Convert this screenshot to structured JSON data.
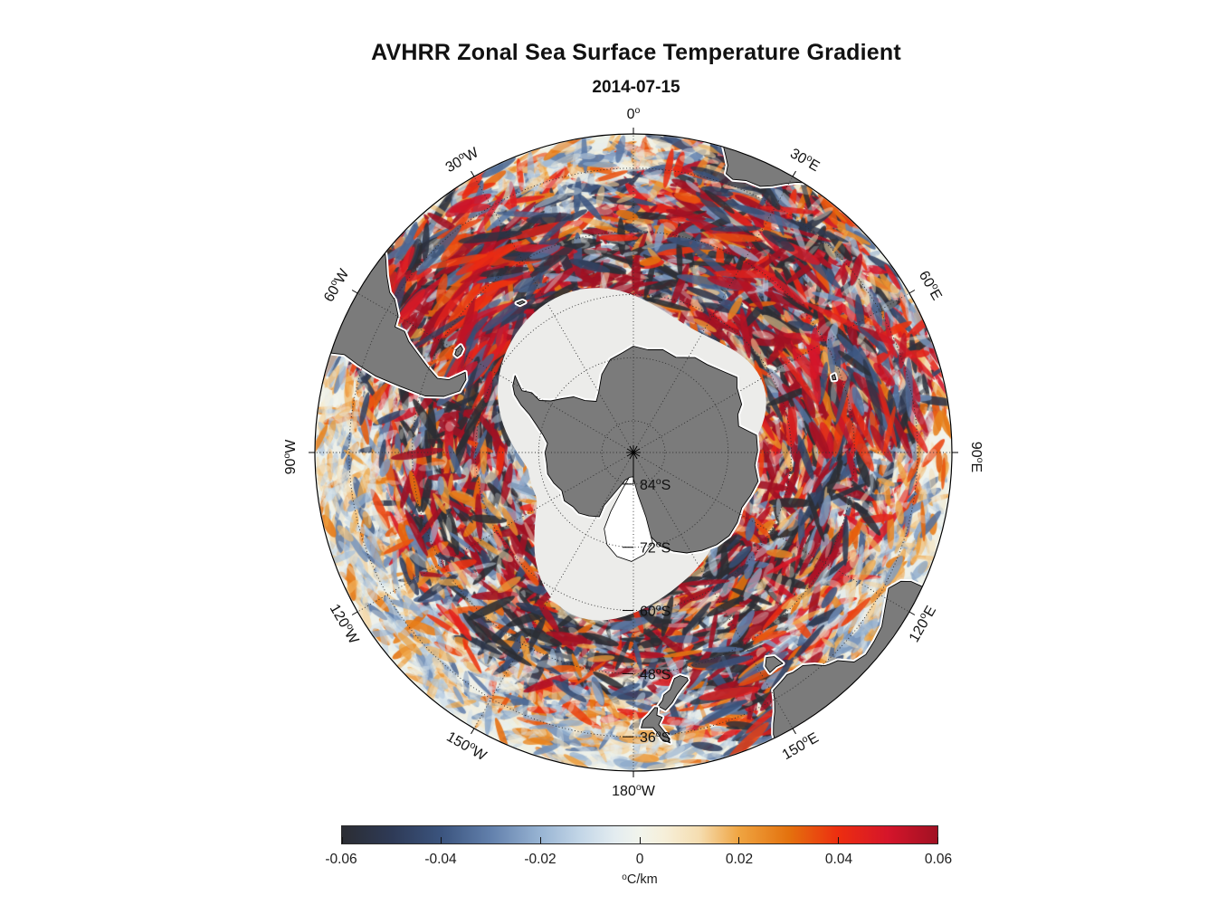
{
  "title": "AVHRR Zonal Sea Surface Temperature Gradient",
  "subtitle": "2014-07-15",
  "colors": {
    "background": "#ffffff",
    "land": "#7b7b7b",
    "land_outline": "#000000",
    "coast_halo": "#ffffff",
    "ice_nodata": "#ececea",
    "ocean_base": "#f2f4ed",
    "graticule": "#2f2f2f",
    "map_border": "#000000",
    "text": "#111111"
  },
  "chart_data": {
    "type": "heatmap",
    "projection": "south-polar, pole at center, outer edge near 30S",
    "title": "AVHRR Zonal Sea Surface Temperature Gradient",
    "subtitle": "2014-07-15",
    "edge_lat": -29.5,
    "grid_lats": [
      -84,
      -72,
      -60,
      -48,
      -36
    ],
    "grid_lon_step_deg": 30,
    "lon_labels": [
      {
        "deg": "0",
        "hem": "",
        "lon": 0,
        "rot": 0
      },
      {
        "deg": "30",
        "hem": "E",
        "lon": 30,
        "rot": 30
      },
      {
        "deg": "60",
        "hem": "E",
        "lon": 60,
        "rot": 60
      },
      {
        "deg": "90",
        "hem": "E",
        "lon": 90,
        "rot": 90
      },
      {
        "deg": "120",
        "hem": "E",
        "lon": 120,
        "rot": -60
      },
      {
        "deg": "150",
        "hem": "E",
        "lon": 150,
        "rot": -30
      },
      {
        "deg": "180",
        "hem": "W",
        "lon": 180,
        "rot": 0
      },
      {
        "deg": "150",
        "hem": "W",
        "lon": -150,
        "rot": 30
      },
      {
        "deg": "120",
        "hem": "W",
        "lon": -120,
        "rot": 60
      },
      {
        "deg": "90",
        "hem": "W",
        "lon": -90,
        "rot": -90
      },
      {
        "deg": "60",
        "hem": "W",
        "lon": -60,
        "rot": -60
      },
      {
        "deg": "30",
        "hem": "W",
        "lon": -30,
        "rot": -30
      }
    ],
    "lat_labels": [
      {
        "deg": "84",
        "hem": "S",
        "lat": -84
      },
      {
        "deg": "72",
        "hem": "S",
        "lat": -72
      },
      {
        "deg": "60",
        "hem": "S",
        "lat": -60
      },
      {
        "deg": "48",
        "hem": "S",
        "lat": -48
      },
      {
        "deg": "36",
        "hem": "S",
        "lat": -36
      }
    ],
    "colorbar": {
      "min": -0.06,
      "max": 0.06,
      "ticks": [
        -0.06,
        -0.04,
        -0.02,
        0,
        0.02,
        0.04,
        0.06
      ],
      "tick_labels": [
        "-0.06",
        "-0.04",
        "-0.02",
        "0",
        "0.02",
        "0.04",
        "0.06"
      ],
      "unit_sup": "o",
      "unit_rest": "C/km",
      "stops": [
        {
          "v": -0.06,
          "c": "#2b2d33"
        },
        {
          "v": -0.05,
          "c": "#2e3a56"
        },
        {
          "v": -0.04,
          "c": "#3b547e"
        },
        {
          "v": -0.03,
          "c": "#6280ac"
        },
        {
          "v": -0.02,
          "c": "#98b4d3"
        },
        {
          "v": -0.012,
          "c": "#c3d6e7"
        },
        {
          "v": -0.005,
          "c": "#e3ecf0"
        },
        {
          "v": 0.0,
          "c": "#f1f4ec"
        },
        {
          "v": 0.005,
          "c": "#f6efd9"
        },
        {
          "v": 0.012,
          "c": "#f5ddb0"
        },
        {
          "v": 0.02,
          "c": "#efa441"
        },
        {
          "v": 0.03,
          "c": "#e4720e"
        },
        {
          "v": 0.04,
          "c": "#ed2e10"
        },
        {
          "v": 0.05,
          "c": "#d5152a"
        },
        {
          "v": 0.06,
          "c": "#a11123"
        }
      ]
    },
    "landmasses": {
      "antarctica": [
        [
          -57,
          -63.2
        ],
        [
          -58.5,
          -64.2
        ],
        [
          -61,
          -65.8
        ],
        [
          -59.5,
          -67.6
        ],
        [
          -61,
          -69.6
        ],
        [
          -58,
          -71.5
        ],
        [
          -53,
          -73
        ],
        [
          -47,
          -74.5
        ],
        [
          -43,
          -76.5
        ],
        [
          -36,
          -78
        ],
        [
          -30,
          -76.8
        ],
        [
          -22,
          -74
        ],
        [
          -14,
          -71.8
        ],
        [
          -6,
          -70.9
        ],
        [
          0,
          -69.8
        ],
        [
          8,
          -70.3
        ],
        [
          16,
          -69.7
        ],
        [
          24,
          -70.2
        ],
        [
          33,
          -68.5
        ],
        [
          40,
          -68.2
        ],
        [
          48,
          -67
        ],
        [
          54,
          -65.7
        ],
        [
          58,
          -66.8
        ],
        [
          66,
          -67.5
        ],
        [
          70,
          -68.9
        ],
        [
          76,
          -69.4
        ],
        [
          82,
          -66.4
        ],
        [
          89,
          -66.4
        ],
        [
          96,
          -66.8
        ],
        [
          103,
          -65.7
        ],
        [
          110,
          -66.3
        ],
        [
          117,
          -66.9
        ],
        [
          124,
          -66.2
        ],
        [
          131,
          -65.9
        ],
        [
          138,
          -66.4
        ],
        [
          145,
          -67.3
        ],
        [
          152,
          -68.4
        ],
        [
          158,
          -69.8
        ],
        [
          164,
          -71.5
        ],
        [
          169,
          -74
        ],
        [
          174,
          -77.5
        ],
        [
          180,
          -83.5
        ],
        [
          186,
          -85.3
        ],
        [
          196,
          -84.6
        ],
        [
          204,
          -82
        ],
        [
          209,
          -78.5
        ],
        [
          208,
          -76.2
        ],
        [
          215,
          -75.3
        ],
        [
          222,
          -74.5
        ],
        [
          228,
          -74.6
        ],
        [
          235,
          -74
        ],
        [
          242,
          -74.6
        ],
        [
          249,
          -73.8
        ],
        [
          256,
          -73.2
        ],
        [
          263,
          -73.4
        ],
        [
          270,
          -73.2
        ],
        [
          276,
          -73.6
        ],
        [
          281,
          -72.5
        ],
        [
          286,
          -70.8
        ],
        [
          290,
          -69
        ],
        [
          293,
          -66.8
        ],
        [
          296,
          -64.9
        ],
        [
          299,
          -63.8
        ]
      ],
      "south_america": [
        [
          -71.8,
          -29.6
        ],
        [
          -71.3,
          -32
        ],
        [
          -72.3,
          -35
        ],
        [
          -73.5,
          -39
        ],
        [
          -74.2,
          -44
        ],
        [
          -74.8,
          -49
        ],
        [
          -73.5,
          -52.5
        ],
        [
          -70.5,
          -55
        ],
        [
          -66.5,
          -55.3
        ],
        [
          -64.5,
          -54.6
        ],
        [
          -68.5,
          -52.3
        ],
        [
          -69.3,
          -50.2
        ],
        [
          -67.4,
          -47.6
        ],
        [
          -65.3,
          -44.8
        ],
        [
          -63.7,
          -42.4
        ],
        [
          -62.1,
          -40.8
        ],
        [
          -62.2,
          -38.8
        ],
        [
          -59.8,
          -38.3
        ],
        [
          -57.4,
          -36.2
        ],
        [
          -56.7,
          -34.6
        ],
        [
          -54.3,
          -32.3
        ],
        [
          -52.2,
          -30.5
        ],
        [
          -51.3,
          -29.6
        ],
        [
          -55,
          -29.3
        ],
        [
          -60,
          -29.25
        ],
        [
          -65,
          -29.25
        ],
        [
          -70,
          -29.3
        ]
      ],
      "falkland_islands": [
        [
          -61.2,
          -51.3
        ],
        [
          -59.8,
          -51.1
        ],
        [
          -58.2,
          -51.4
        ],
        [
          -58.8,
          -52.1
        ],
        [
          -60.4,
          -52.2
        ],
        [
          -61.4,
          -51.9
        ]
      ],
      "south_georgia": [
        [
          -38,
          -54
        ],
        [
          -36.2,
          -54.3
        ],
        [
          -35.8,
          -54.8
        ],
        [
          -37.5,
          -54.6
        ]
      ],
      "southern_africa": [
        [
          16.4,
          -29.4
        ],
        [
          17.3,
          -31
        ],
        [
          18.2,
          -32.6
        ],
        [
          18.4,
          -34.2
        ],
        [
          20,
          -34.8
        ],
        [
          22.5,
          -34.1
        ],
        [
          25.5,
          -34
        ],
        [
          27.5,
          -32.9
        ],
        [
          29.5,
          -31.3
        ],
        [
          31.2,
          -30
        ],
        [
          32.3,
          -29.4
        ],
        [
          28,
          -29.2
        ],
        [
          24,
          -29.2
        ],
        [
          20,
          -29.2
        ]
      ],
      "australia": [
        [
          114.9,
          -29.4
        ],
        [
          114.9,
          -31.8
        ],
        [
          115.7,
          -33.6
        ],
        [
          118,
          -35.1
        ],
        [
          121.5,
          -33.9
        ],
        [
          125,
          -32.4
        ],
        [
          128,
          -31.9
        ],
        [
          131,
          -31.5
        ],
        [
          133.5,
          -32.2
        ],
        [
          135.5,
          -34.6
        ],
        [
          137.2,
          -35.2
        ],
        [
          138.1,
          -35.6
        ],
        [
          139.5,
          -37
        ],
        [
          141.5,
          -38.3
        ],
        [
          144,
          -38.4
        ],
        [
          145.3,
          -38.7
        ],
        [
          147.2,
          -38.2
        ],
        [
          149.5,
          -37.6
        ],
        [
          150.3,
          -35.9
        ],
        [
          151.4,
          -33.9
        ],
        [
          152.7,
          -32
        ],
        [
          153.6,
          -30.2
        ],
        [
          153.7,
          -29.4
        ],
        [
          148,
          -29.2
        ],
        [
          141,
          -29.2
        ],
        [
          134,
          -29.2
        ],
        [
          127,
          -29.2
        ],
        [
          120,
          -29.2
        ],
        [
          116,
          -29.2
        ]
      ],
      "tasmania": [
        [
          144.7,
          -40.9
        ],
        [
          146.3,
          -41.1
        ],
        [
          148.2,
          -40.8
        ],
        [
          148.3,
          -42.3
        ],
        [
          147,
          -43.6
        ],
        [
          145.4,
          -42.9
        ]
      ],
      "new_zealand_south": [
        [
          166.6,
          -46
        ],
        [
          168.2,
          -46.7
        ],
        [
          169.7,
          -46.4
        ],
        [
          171.2,
          -44.4
        ],
        [
          172.8,
          -43.6
        ],
        [
          173.3,
          -42.6
        ],
        [
          174.4,
          -41.6
        ],
        [
          172.9,
          -40.7
        ],
        [
          171.2,
          -41.9
        ],
        [
          169.8,
          -43.3
        ],
        [
          168,
          -44.6
        ],
        [
          166.5,
          -45.5
        ]
      ],
      "new_zealand_north": [
        [
          172.8,
          -34.4
        ],
        [
          174.4,
          -35.3
        ],
        [
          175.1,
          -36.6
        ],
        [
          175.9,
          -37.6
        ],
        [
          178.4,
          -37.7
        ],
        [
          177.9,
          -39.1
        ],
        [
          176.6,
          -40.1
        ],
        [
          175.2,
          -41.4
        ],
        [
          174.6,
          -41.3
        ],
        [
          174.9,
          -39.9
        ],
        [
          173.8,
          -39.4
        ],
        [
          174.7,
          -38.1
        ],
        [
          173.1,
          -35.8
        ]
      ],
      "kerguelen": [
        [
          68.8,
          -49
        ],
        [
          70.2,
          -49.1
        ],
        [
          70,
          -49.7
        ],
        [
          68.9,
          -49.6
        ]
      ]
    },
    "ross_ice_shelf": [
      [
        168,
        -72.5
      ],
      [
        174,
        -70.5
      ],
      [
        181,
        -69.3
      ],
      [
        189,
        -70
      ],
      [
        196,
        -71.8
      ],
      [
        201,
        -74.5
      ],
      [
        201,
        -78
      ],
      [
        197,
        -82.5
      ],
      [
        190,
        -85.2
      ],
      [
        181,
        -85.4
      ],
      [
        174,
        -82
      ],
      [
        169,
        -77.5
      ]
    ]
  }
}
